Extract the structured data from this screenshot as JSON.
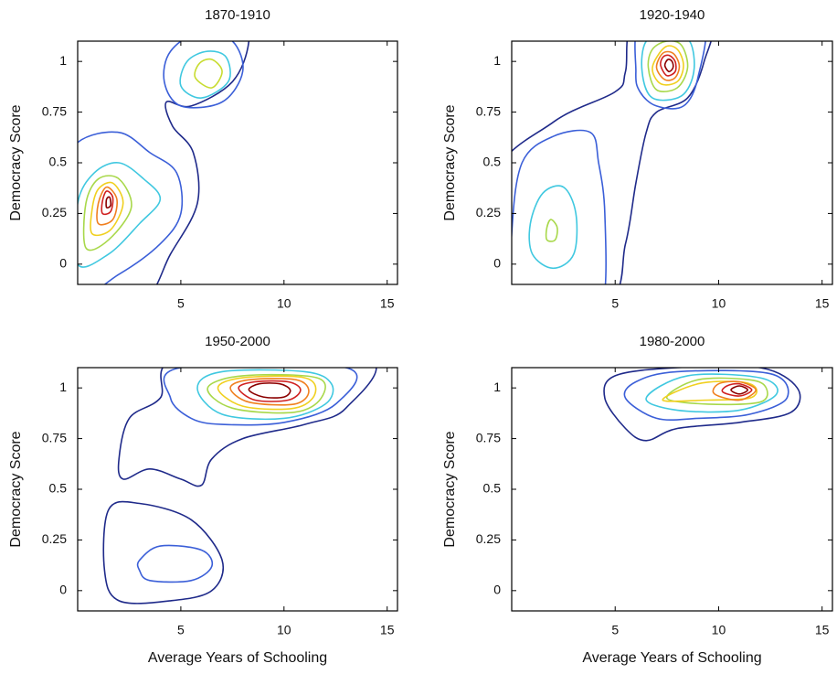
{
  "chart_data": [
    {
      "type": "contour",
      "title": "1870-1910",
      "ylabel": "Democracy Score",
      "xlim": [
        0,
        15.5
      ],
      "ylim": [
        -0.1,
        1.1
      ],
      "xticks": [
        5,
        10,
        15
      ],
      "yticks": [
        0,
        0.25,
        0.5,
        0.75,
        1
      ],
      "contours": [
        {
          "color": "#1f2a8a",
          "x": [
            -1,
            3,
            4.5,
            5.8,
            5.6,
            4.6,
            4.3,
            5.5,
            7.5,
            8.3,
            8,
            3,
            -1
          ],
          "y": [
            -0.3,
            -0.2,
            0.05,
            0.3,
            0.55,
            0.68,
            0.8,
            0.78,
            0.9,
            1.1,
            1.3,
            1.3,
            1.3
          ]
        },
        {
          "color": "#3b5fd8",
          "x": [
            -1,
            2,
            4,
            5,
            4.8,
            3.5,
            2,
            0,
            -1
          ],
          "y": [
            -0.2,
            -0.05,
            0.1,
            0.25,
            0.45,
            0.55,
            0.65,
            0.6,
            0.4
          ]
        },
        {
          "color": "#3b5fd8",
          "x": [
            4.2,
            5,
            7,
            8,
            7.5,
            6,
            4.5
          ],
          "y": [
            0.9,
            0.78,
            0.8,
            0.95,
            1.1,
            1.15,
            1.05
          ]
        },
        {
          "color": "#40c8e0",
          "x": [
            0,
            1.5,
            3,
            4,
            3.2,
            2,
            0.8,
            0
          ],
          "y": [
            0,
            0.05,
            0.2,
            0.32,
            0.42,
            0.5,
            0.45,
            0.3
          ]
        },
        {
          "color": "#40c8e0",
          "x": [
            5,
            6,
            7.3,
            7.2,
            6.3,
            5.3
          ],
          "y": [
            0.88,
            0.82,
            0.9,
            1.02,
            1.05,
            1
          ]
        },
        {
          "color": "#a8d84a",
          "x": [
            0.4,
            1.5,
            2.6,
            2,
            1,
            0.4
          ],
          "y": [
            0.08,
            0.12,
            0.28,
            0.42,
            0.42,
            0.3
          ]
        },
        {
          "color": "#c8dc30",
          "x": [
            5.7,
            6.5,
            7,
            6.5,
            5.9
          ],
          "y": [
            0.92,
            0.87,
            0.95,
            1.01,
            0.99
          ]
        },
        {
          "color": "#f0d020",
          "x": [
            0.7,
            1.6,
            2.2,
            1.7,
            1,
            0.7
          ],
          "y": [
            0.15,
            0.17,
            0.3,
            0.4,
            0.37,
            0.27
          ]
        },
        {
          "color": "#f08020",
          "x": [
            1,
            1.7,
            1.9,
            1.4,
            1
          ],
          "y": [
            0.2,
            0.22,
            0.32,
            0.38,
            0.3
          ]
        },
        {
          "color": "#d02020",
          "x": [
            1.2,
            1.6,
            1.7,
            1.4,
            1.2
          ],
          "y": [
            0.25,
            0.26,
            0.33,
            0.36,
            0.31
          ]
        },
        {
          "color": "#8b0000",
          "x": [
            1.4,
            1.6,
            1.55,
            1.4
          ],
          "y": [
            0.28,
            0.29,
            0.33,
            0.32
          ]
        }
      ]
    },
    {
      "type": "contour",
      "title": "1920-1940",
      "ylabel": "Democracy Score",
      "xlim": [
        0,
        15.5
      ],
      "ylim": [
        -0.1,
        1.1
      ],
      "xticks": [
        5,
        10,
        15
      ],
      "yticks": [
        0,
        0.25,
        0.5,
        0.75,
        1
      ],
      "contours": [
        {
          "color": "#1f2a8a",
          "x": [
            -1,
            2,
            5,
            5.5,
            6,
            9.5,
            9.3,
            8.5,
            7,
            6.5,
            6,
            5.5,
            4.5,
            -1
          ],
          "y": [
            0.4,
            0.7,
            0.85,
            0.95,
            1.2,
            1.2,
            1,
            0.82,
            0.75,
            0.65,
            0.4,
            0.1,
            -0.2,
            -0.3
          ]
        },
        {
          "color": "#3b5fd8",
          "x": [
            0,
            0.5,
            2,
            3.8,
            4.2,
            4.5,
            4.4,
            3,
            0
          ],
          "y": [
            0.15,
            0.5,
            0.63,
            0.65,
            0.5,
            0.25,
            -0.2,
            -0.3,
            -0.3
          ]
        },
        {
          "color": "#3b5fd8",
          "x": [
            6,
            6.3,
            9.2,
            9,
            8.3,
            7,
            6.2
          ],
          "y": [
            0.95,
            1.2,
            1.2,
            0.92,
            0.78,
            0.78,
            0.85
          ]
        },
        {
          "color": "#40c8e0",
          "x": [
            1,
            2,
            3,
            3.1,
            2.5,
            1.5,
            0.9
          ],
          "y": [
            0.05,
            -0.02,
            0.05,
            0.25,
            0.38,
            0.35,
            0.2
          ]
        },
        {
          "color": "#a8d84a",
          "x": [
            1.7,
            2.1,
            2.2,
            1.9,
            1.7
          ],
          "y": [
            0.12,
            0.12,
            0.18,
            0.22,
            0.18
          ]
        },
        {
          "color": "#40c8e0",
          "x": [
            6.3,
            6.8,
            8.2,
            8.8,
            8.6,
            7.6,
            6.5
          ],
          "y": [
            0.95,
            0.82,
            0.83,
            0.95,
            1.1,
            1.15,
            1.1
          ]
        },
        {
          "color": "#a8d84a",
          "x": [
            6.6,
            7,
            8,
            8.5,
            8.2,
            7.5,
            6.8
          ],
          "y": [
            0.97,
            0.86,
            0.87,
            0.97,
            1.08,
            1.1,
            1.06
          ]
        },
        {
          "color": "#f0d020",
          "x": [
            6.8,
            7.2,
            8,
            8.3,
            8,
            7.4
          ],
          "y": [
            0.97,
            0.89,
            0.9,
            0.98,
            1.06,
            1.07
          ]
        },
        {
          "color": "#f08020",
          "x": [
            7,
            7.4,
            7.9,
            8.1,
            7.8,
            7.3
          ],
          "y": [
            0.97,
            0.91,
            0.92,
            0.98,
            1.04,
            1.04
          ]
        },
        {
          "color": "#d02020",
          "x": [
            7.2,
            7.5,
            7.9,
            7.9,
            7.6,
            7.3
          ],
          "y": [
            0.98,
            0.93,
            0.95,
            1,
            1.03,
            1.02
          ]
        },
        {
          "color": "#8b0000",
          "x": [
            7.4,
            7.6,
            7.8,
            7.75,
            7.55
          ],
          "y": [
            0.98,
            0.95,
            0.97,
            1,
            1.01
          ]
        }
      ]
    },
    {
      "type": "contour",
      "title": "1950-2000",
      "xlabel": "Average Years of Schooling",
      "ylabel": "Democracy Score",
      "xlim": [
        0,
        15.5
      ],
      "ylim": [
        -0.1,
        1.1
      ],
      "xticks": [
        5,
        10,
        15
      ],
      "yticks": [
        0,
        0.25,
        0.5,
        0.75,
        1
      ],
      "contours": [
        {
          "color": "#1f2a8a",
          "x": [
            2,
            2.5,
            4,
            5,
            14,
            13,
            11,
            8,
            6.5,
            6,
            5,
            3.5,
            2.2
          ],
          "y": [
            0.65,
            0.85,
            0.95,
            1.15,
            1.15,
            0.9,
            0.82,
            0.75,
            0.65,
            0.52,
            0.55,
            0.6,
            0.55
          ]
        },
        {
          "color": "#1f2a8a",
          "x": [
            1.5,
            3,
            5.5,
            7,
            6.5,
            4.5,
            2,
            1.3
          ],
          "y": [
            0.4,
            0.43,
            0.35,
            0.15,
            0,
            -0.05,
            -0.05,
            0.1
          ]
        },
        {
          "color": "#3b5fd8",
          "x": [
            3,
            4,
            6,
            6.5,
            5.5,
            3.5,
            3
          ],
          "y": [
            0.15,
            0.22,
            0.2,
            0.12,
            0.05,
            0.05,
            0.1
          ]
        },
        {
          "color": "#3b5fd8",
          "x": [
            4.5,
            5,
            13,
            12.5,
            10,
            7,
            5.5
          ],
          "y": [
            0.95,
            1.1,
            1.1,
            0.92,
            0.83,
            0.82,
            0.85
          ]
        },
        {
          "color": "#40c8e0",
          "x": [
            5.8,
            7,
            10,
            12,
            12.3,
            11,
            7
          ],
          "y": [
            1,
            0.87,
            0.85,
            0.92,
            1.02,
            1.08,
            1.08
          ]
        },
        {
          "color": "#a8d84a",
          "x": [
            6.3,
            7.5,
            10.5,
            11.8,
            11.6,
            8
          ],
          "y": [
            1,
            0.9,
            0.88,
            0.95,
            1.05,
            1.06
          ]
        },
        {
          "color": "#f0d020",
          "x": [
            6.8,
            8,
            10.5,
            11.5,
            11,
            8
          ],
          "y": [
            1,
            0.91,
            0.9,
            0.97,
            1.05,
            1.05
          ]
        },
        {
          "color": "#f08020",
          "x": [
            7.4,
            8.3,
            10.5,
            11.2,
            10.6,
            8.3
          ],
          "y": [
            1,
            0.93,
            0.92,
            0.98,
            1.04,
            1.04
          ]
        },
        {
          "color": "#d02020",
          "x": [
            7.8,
            8.6,
            10.2,
            10.8,
            10.2,
            8.6
          ],
          "y": [
            1,
            0.94,
            0.94,
            0.99,
            1.03,
            1.03
          ]
        },
        {
          "color": "#8b0000",
          "x": [
            8.3,
            9,
            10,
            10.3,
            9.8,
            8.8
          ],
          "y": [
            0.99,
            0.955,
            0.955,
            0.99,
            1.02,
            1.02
          ]
        }
      ]
    },
    {
      "type": "contour",
      "title": "1980-2000",
      "xlabel": "Average Years of Schooling",
      "ylabel": "Democracy Score",
      "xlim": [
        0,
        15.5
      ],
      "ylim": [
        -0.1,
        1.1
      ],
      "xticks": [
        5,
        10,
        15
      ],
      "yticks": [
        0,
        0.25,
        0.5,
        0.75,
        1
      ],
      "contours": [
        {
          "color": "#1f2a8a",
          "x": [
            4.5,
            5,
            8,
            12,
            13.8,
            13.5,
            11,
            8,
            6.5,
            5.5
          ],
          "y": [
            0.95,
            1.06,
            1.1,
            1.1,
            1,
            0.88,
            0.83,
            0.8,
            0.74,
            0.8
          ]
        },
        {
          "color": "#3b5fd8",
          "x": [
            5.5,
            7,
            9,
            11.5,
            13.3,
            12.5,
            8,
            6
          ],
          "y": [
            0.95,
            0.85,
            0.85,
            0.87,
            0.95,
            1.07,
            1.08,
            1.03
          ]
        },
        {
          "color": "#40c8e0",
          "x": [
            6.5,
            8,
            11,
            12.8,
            12,
            8.5
          ],
          "y": [
            0.95,
            0.89,
            0.89,
            0.97,
            1.05,
            1.06
          ]
        },
        {
          "color": "#a8d84a",
          "x": [
            7.5,
            9.5,
            12,
            12.3,
            11.5,
            9
          ],
          "y": [
            0.95,
            0.92,
            0.93,
            1,
            1.04,
            1.04
          ]
        },
        {
          "color": "#f0d020",
          "x": [
            7.3,
            9.5,
            11.5,
            11.8,
            11,
            9
          ],
          "y": [
            0.94,
            0.94,
            0.95,
            1,
            1.03,
            1.02
          ]
        },
        {
          "color": "#f08020",
          "x": [
            9.8,
            11,
            11.8,
            11,
            10
          ],
          "y": [
            0.97,
            0.94,
            0.99,
            1.03,
            1.02
          ]
        },
        {
          "color": "#d02020",
          "x": [
            10.2,
            11,
            11.6,
            11,
            10.4
          ],
          "y": [
            0.98,
            0.96,
            0.99,
            1.02,
            1.01
          ]
        },
        {
          "color": "#8b0000",
          "x": [
            10.6,
            11,
            11.4,
            11
          ],
          "y": [
            0.99,
            0.97,
            0.99,
            1.01
          ]
        }
      ]
    }
  ]
}
